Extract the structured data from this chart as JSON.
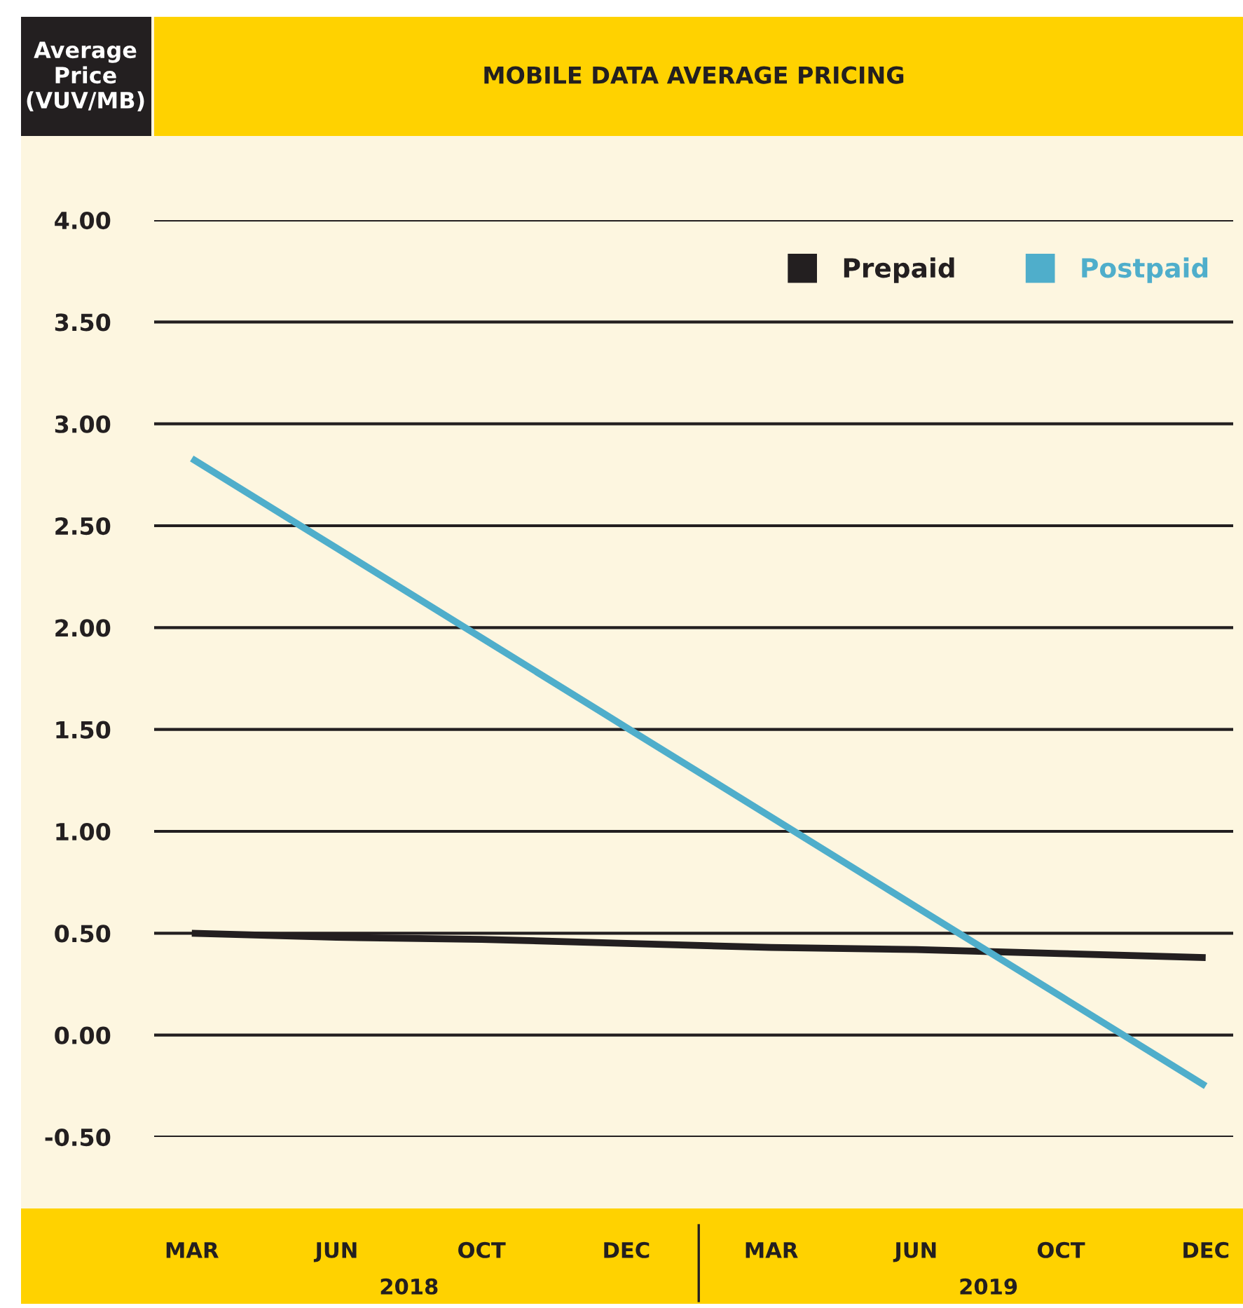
{
  "chart_data": {
    "type": "line",
    "title": "MOBILE DATA AVERAGE PRICING",
    "ylabel": "Average\nPrice\n(VUV/MB)",
    "categories": [
      "MAR",
      "JUN",
      "OCT",
      "DEC",
      "MAR",
      "JUN",
      "OCT",
      "DEC"
    ],
    "annotations": [
      "2018",
      "2019"
    ],
    "series": [
      {
        "name": "Prepaid",
        "color": "#231f20",
        "values": [
          0.5,
          0.48,
          0.47,
          0.45,
          0.43,
          0.42,
          0.4,
          0.38
        ]
      },
      {
        "name": "Postpaid",
        "color": "#4faecb",
        "values": [
          2.83,
          2.39,
          1.95,
          1.51,
          1.07,
          0.63,
          0.19,
          -0.25
        ]
      }
    ],
    "ylim": [
      -0.5,
      4.0
    ],
    "yticks": [
      {
        "value": -0.5,
        "label": "-0.50"
      },
      {
        "value": 0,
        "label": "0.00"
      },
      {
        "value": 0.5,
        "label": "0.50"
      },
      {
        "value": 1,
        "label": "1.00"
      },
      {
        "value": 1.5,
        "label": "1.50"
      },
      {
        "value": 2,
        "label": "2.00"
      },
      {
        "value": 2.5,
        "label": "2.50"
      },
      {
        "value": 3,
        "label": "3.00"
      },
      {
        "value": 3.5,
        "label": "3.50"
      },
      {
        "value": 4,
        "label": "4.00"
      }
    ],
    "grid": "y",
    "legend": "top right",
    "marker": "none",
    "line_style": "solid"
  }
}
